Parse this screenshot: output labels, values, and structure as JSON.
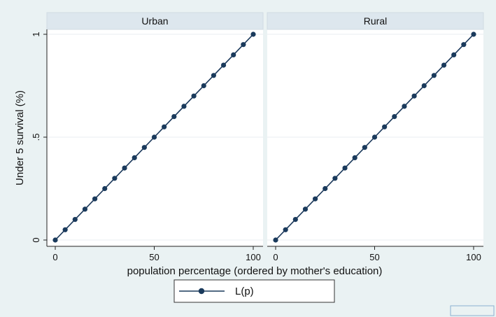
{
  "chart_data": {
    "type": "line",
    "panels": [
      {
        "title": "Urban",
        "series": [
          {
            "name": "L(p)",
            "x": [
              0,
              5,
              10,
              15,
              20,
              25,
              30,
              35,
              40,
              45,
              50,
              55,
              60,
              65,
              70,
              75,
              80,
              85,
              90,
              95,
              100
            ],
            "y": [
              0,
              0.05,
              0.1,
              0.15,
              0.2,
              0.25,
              0.3,
              0.35,
              0.4,
              0.45,
              0.5,
              0.55,
              0.6,
              0.65,
              0.7,
              0.75,
              0.8,
              0.85,
              0.9,
              0.95,
              1
            ]
          }
        ]
      },
      {
        "title": "Rural",
        "series": [
          {
            "name": "L(p)",
            "x": [
              0,
              5,
              10,
              15,
              20,
              25,
              30,
              35,
              40,
              45,
              50,
              55,
              60,
              65,
              70,
              75,
              80,
              85,
              90,
              95,
              100
            ],
            "y": [
              0,
              0.05,
              0.1,
              0.15,
              0.2,
              0.25,
              0.3,
              0.35,
              0.4,
              0.45,
              0.5,
              0.55,
              0.6,
              0.65,
              0.7,
              0.75,
              0.8,
              0.85,
              0.9,
              0.95,
              1
            ]
          }
        ]
      }
    ],
    "xlabel": "population percentage (ordered by mother's education)",
    "ylabel": "Under 5 survival (%)",
    "xlim": [
      0,
      100
    ],
    "ylim": [
      0,
      1
    ],
    "x_ticks": [
      "0",
      "50",
      "100"
    ],
    "x_tick_values": [
      0,
      50,
      100
    ],
    "y_ticks": [
      "0",
      ".5",
      "1"
    ],
    "y_tick_values": [
      0,
      0.5,
      1
    ],
    "equality_line": true,
    "grid": true,
    "legend": {
      "entries": [
        "L(p)"
      ],
      "placement": "bottom-center"
    },
    "colors": {
      "series": "#1a3a5c",
      "equality_line": "#b0203a",
      "background": "#eaf2f3",
      "panel": "#ffffff",
      "strip": "#dde7ee"
    }
  }
}
